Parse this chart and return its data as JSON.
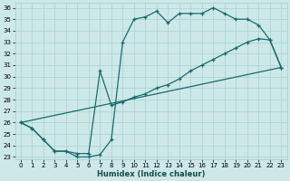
{
  "xlabel": "Humidex (Indice chaleur)",
  "bg_color": "#cce8e8",
  "line_color": "#1a6b6b",
  "grid_color": "#aad0d0",
  "xlim": [
    -0.5,
    23.5
  ],
  "ylim": [
    22.8,
    36.4
  ],
  "xticks": [
    0,
    1,
    2,
    3,
    4,
    5,
    6,
    7,
    8,
    9,
    10,
    11,
    12,
    13,
    14,
    15,
    16,
    17,
    18,
    19,
    20,
    21,
    22,
    23
  ],
  "yticks": [
    23,
    24,
    25,
    26,
    27,
    28,
    29,
    30,
    31,
    32,
    33,
    34,
    35,
    36
  ],
  "curve1_x": [
    0,
    1,
    2,
    3,
    4,
    5,
    6,
    7,
    8,
    9,
    10,
    11,
    12,
    13,
    14,
    15,
    16,
    17,
    18,
    19,
    20,
    21,
    22,
    23
  ],
  "curve1_y": [
    26.0,
    25.5,
    24.5,
    23.5,
    23.5,
    23.0,
    23.0,
    23.2,
    24.5,
    33.0,
    35.0,
    35.2,
    35.7,
    34.7,
    35.5,
    35.5,
    35.5,
    36.0,
    35.5,
    35.0,
    35.0,
    34.5,
    33.2,
    30.8
  ],
  "curve2_x": [
    0,
    1,
    2,
    3,
    4,
    5,
    6,
    7,
    8,
    9,
    10,
    11,
    12,
    13,
    14,
    15,
    16,
    17,
    18,
    19,
    20,
    21,
    22,
    23
  ],
  "curve2_y": [
    26.0,
    25.5,
    24.5,
    23.5,
    23.5,
    23.3,
    23.3,
    30.5,
    27.5,
    27.8,
    28.2,
    28.5,
    29.0,
    29.3,
    29.8,
    30.5,
    31.0,
    31.5,
    32.0,
    32.5,
    33.0,
    33.3,
    33.2,
    30.8
  ],
  "curve3_x": [
    0,
    23
  ],
  "curve3_y": [
    26.0,
    30.8
  ]
}
